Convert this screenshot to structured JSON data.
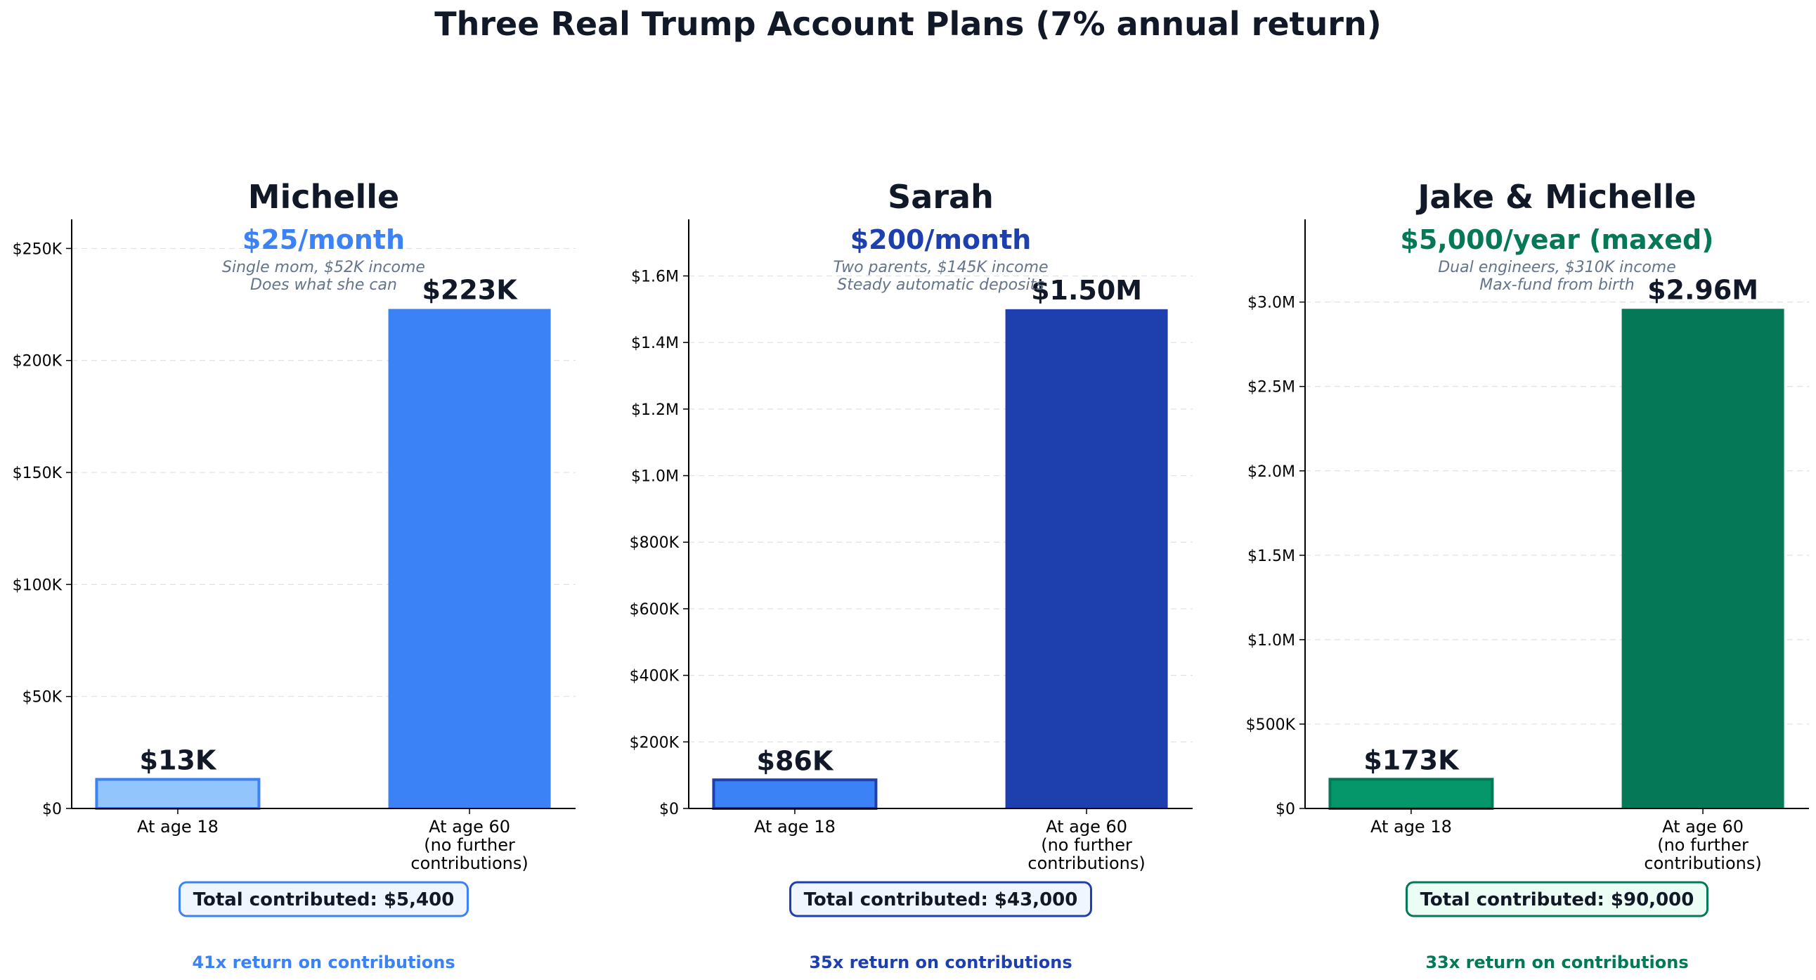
{
  "suptitle": "Three Real Trump Account Plans (7% annual return)",
  "chart_data": [
    {
      "type": "bar",
      "title": "Michelle",
      "subtitle": "$25/month",
      "notes": [
        "Single mom, $52K income",
        "Does what she can"
      ],
      "categories": [
        "At age 18",
        "At age 60\n(no further\ncontributions)"
      ],
      "values": [
        13000,
        223000
      ],
      "value_labels": [
        "$13K",
        "$223K"
      ],
      "ylim": [
        0,
        263000
      ],
      "yticks": [
        0,
        50000,
        100000,
        150000,
        200000,
        250000
      ],
      "ytick_labels": [
        "$0",
        "$50K",
        "$100K",
        "$150K",
        "$200K",
        "$250K"
      ],
      "grid": true,
      "total_contributed": "Total contributed: $5,400",
      "return_multiple": "41x return on contributions",
      "colors": {
        "accent": "#3b82f6",
        "bar_18_fill": "#93c5fd",
        "bar_18_edge": "#3b82f6",
        "bar_60": "#3b82f6",
        "box_fill": "#eff6ff"
      }
    },
    {
      "type": "bar",
      "title": "Sarah",
      "subtitle": "$200/month",
      "notes": [
        "Two parents, $145K income",
        "Steady automatic deposits"
      ],
      "categories": [
        "At age 18",
        "At age 60\n(no further\ncontributions)"
      ],
      "values": [
        86000,
        1500000
      ],
      "value_labels": [
        "$86K",
        "$1.50M"
      ],
      "ylim": [
        0,
        1770000
      ],
      "yticks": [
        0,
        200000,
        400000,
        600000,
        800000,
        1000000,
        1200000,
        1400000,
        1600000
      ],
      "ytick_labels": [
        "$0",
        "$200K",
        "$400K",
        "$600K",
        "$800K",
        "$1.0M",
        "$1.2M",
        "$1.4M",
        "$1.6M"
      ],
      "grid": true,
      "total_contributed": "Total contributed: $43,000",
      "return_multiple": "35x return on contributions",
      "colors": {
        "accent": "#1e40af",
        "bar_18_fill": "#3b82f6",
        "bar_18_edge": "#1e40af",
        "bar_60": "#1e40af",
        "box_fill": "#eff6ff"
      }
    },
    {
      "type": "bar",
      "title": "Jake & Michelle",
      "subtitle": "$5,000/year (maxed)",
      "notes": [
        "Dual engineers, $310K income",
        "Max-fund from birth"
      ],
      "categories": [
        "At age 18",
        "At age 60\n(no further\ncontributions)"
      ],
      "values": [
        173000,
        2960000
      ],
      "value_labels": [
        "$173K",
        "$2.96M"
      ],
      "ylim": [
        0,
        3490000
      ],
      "yticks": [
        0,
        500000,
        1000000,
        1500000,
        2000000,
        2500000,
        3000000
      ],
      "ytick_labels": [
        "$0",
        "$500K",
        "$1.0M",
        "$1.5M",
        "$2.0M",
        "$2.5M",
        "$3.0M"
      ],
      "grid": true,
      "total_contributed": "Total contributed: $90,000",
      "return_multiple": "33x return on contributions",
      "colors": {
        "accent": "#047857",
        "bar_18_fill": "#059669",
        "bar_18_edge": "#047857",
        "bar_60": "#047857",
        "box_fill": "#ecfdf5"
      }
    }
  ]
}
